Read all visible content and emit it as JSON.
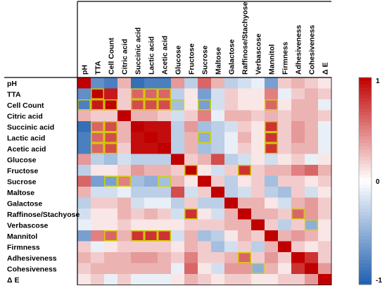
{
  "chart_data": {
    "type": "heatmap",
    "title": "",
    "xlabel": "",
    "ylabel": "",
    "variables": [
      "pH",
      "TTA",
      "Cell Count",
      "Citric acid",
      "Succinic acid",
      "Lactic acid",
      "Acetic acid",
      "Glucose",
      "Fructose",
      "Sucrose",
      "Maltose",
      "Galactose",
      "Raffinose/Stachyose",
      "Verbascose",
      "Mannitol",
      "Firmness",
      "Adhesiveness",
      "Cohesiveness",
      "Δ E"
    ],
    "values": [
      [
        1.0,
        -0.7,
        -0.8,
        0.3,
        -0.9,
        -0.8,
        -0.8,
        0.4,
        -0.3,
        0.6,
        0.3,
        -0.3,
        -0.2,
        -0.1,
        -0.6,
        0.2,
        0.3,
        0.2,
        0.1
      ],
      [
        -0.7,
        1.0,
        0.9,
        0.2,
        0.6,
        0.6,
        0.6,
        -0.3,
        0.1,
        -0.6,
        -0.2,
        0.2,
        0.1,
        0.1,
        0.5,
        -0.1,
        0.2,
        0.3,
        0.2
      ],
      [
        -0.8,
        0.9,
        1.0,
        0.2,
        0.7,
        0.7,
        0.7,
        -0.4,
        0.1,
        -0.6,
        -0.2,
        0.2,
        0.1,
        0.1,
        0.6,
        0.1,
        0.3,
        0.3,
        -0.1
      ],
      [
        0.3,
        0.2,
        0.2,
        1.0,
        0.3,
        0.3,
        0.2,
        -0.2,
        0.2,
        0.5,
        -0.1,
        0.3,
        0.3,
        0.2,
        0.3,
        0.2,
        0.3,
        0.3,
        0.2
      ],
      [
        -0.9,
        0.6,
        0.7,
        0.3,
        1.0,
        0.95,
        0.95,
        -0.3,
        0.4,
        -0.4,
        -0.3,
        -0.2,
        0.2,
        0.1,
        0.8,
        0.2,
        0.4,
        0.3,
        -0.1
      ],
      [
        -0.8,
        0.6,
        0.7,
        0.3,
        0.95,
        1.0,
        0.95,
        -0.3,
        0.3,
        -0.5,
        -0.3,
        -0.1,
        0.3,
        0.1,
        0.8,
        0.2,
        0.4,
        0.3,
        -0.1
      ],
      [
        -0.8,
        0.6,
        0.7,
        0.2,
        0.95,
        0.95,
        1.0,
        -0.3,
        0.3,
        -0.4,
        -0.3,
        -0.1,
        0.2,
        0.1,
        0.8,
        0.2,
        0.3,
        0.3,
        -0.1
      ],
      [
        0.4,
        -0.3,
        -0.4,
        -0.2,
        -0.3,
        -0.3,
        -0.3,
        1.0,
        0.2,
        0.3,
        0.7,
        -0.3,
        -0.2,
        0.1,
        -0.2,
        0.1,
        0.2,
        -0.1,
        0.1
      ],
      [
        -0.3,
        0.1,
        0.1,
        0.2,
        0.4,
        0.3,
        0.3,
        0.2,
        1.0,
        0.1,
        -0.2,
        0.2,
        0.8,
        0.2,
        0.3,
        0.3,
        0.5,
        0.6,
        0.3
      ],
      [
        0.6,
        -0.6,
        -0.6,
        0.5,
        -0.4,
        -0.5,
        -0.4,
        0.3,
        0.1,
        1.0,
        0.2,
        -0.3,
        0.1,
        0.2,
        -0.4,
        0.2,
        0.2,
        0.1,
        0.2
      ],
      [
        0.3,
        -0.2,
        -0.2,
        -0.1,
        -0.3,
        -0.3,
        -0.3,
        0.7,
        -0.2,
        0.2,
        1.0,
        -0.3,
        -0.2,
        0.2,
        -0.3,
        -0.4,
        0.2,
        -0.2,
        0.1
      ],
      [
        -0.3,
        0.2,
        0.2,
        0.3,
        -0.2,
        -0.1,
        -0.1,
        -0.3,
        0.2,
        -0.3,
        -0.3,
        1.0,
        0.3,
        0.3,
        0.1,
        -0.2,
        0.3,
        0.4,
        0.2
      ],
      [
        -0.2,
        0.1,
        0.1,
        0.3,
        0.2,
        0.3,
        0.2,
        -0.2,
        0.8,
        0.1,
        -0.2,
        0.3,
        1.0,
        0.3,
        0.3,
        0.2,
        0.6,
        0.4,
        0.2
      ],
      [
        -0.1,
        0.1,
        0.1,
        0.2,
        0.1,
        0.1,
        0.1,
        0.1,
        0.2,
        0.2,
        0.2,
        0.3,
        0.3,
        1.0,
        0.2,
        -0.3,
        0.2,
        -0.5,
        0.1
      ],
      [
        -0.6,
        0.5,
        0.6,
        0.3,
        0.8,
        0.8,
        0.8,
        -0.2,
        0.3,
        -0.4,
        -0.3,
        0.1,
        0.3,
        0.2,
        1.0,
        0.3,
        0.4,
        0.3,
        0.1
      ],
      [
        0.2,
        -0.1,
        0.1,
        0.2,
        0.2,
        0.2,
        0.2,
        0.1,
        0.3,
        0.2,
        -0.4,
        -0.2,
        0.2,
        -0.3,
        0.3,
        1.0,
        0.2,
        0.1,
        0.2
      ],
      [
        0.3,
        0.2,
        0.3,
        0.3,
        0.4,
        0.4,
        0.3,
        0.2,
        0.5,
        0.2,
        0.2,
        0.3,
        0.6,
        0.2,
        0.4,
        0.2,
        1.0,
        0.8,
        0.2
      ],
      [
        0.2,
        0.3,
        0.3,
        0.3,
        0.3,
        0.3,
        0.3,
        -0.1,
        0.6,
        0.1,
        -0.2,
        0.4,
        0.4,
        -0.5,
        0.3,
        0.1,
        0.8,
        1.0,
        0.4
      ],
      [
        0.1,
        0.2,
        -0.1,
        0.2,
        -0.1,
        -0.1,
        -0.1,
        0.1,
        0.3,
        0.2,
        0.1,
        0.2,
        0.2,
        0.1,
        0.1,
        0.2,
        0.2,
        0.4,
        1.0
      ]
    ],
    "highlighted": [
      [
        1,
        1
      ],
      [
        1,
        4
      ],
      [
        1,
        5
      ],
      [
        1,
        6
      ],
      [
        2,
        0
      ],
      [
        2,
        1
      ],
      [
        2,
        2
      ],
      [
        2,
        4
      ],
      [
        2,
        5
      ],
      [
        2,
        6
      ],
      [
        2,
        7
      ],
      [
        2,
        9
      ],
      [
        2,
        14
      ],
      [
        4,
        1
      ],
      [
        4,
        2
      ],
      [
        4,
        14
      ],
      [
        5,
        1
      ],
      [
        5,
        2
      ],
      [
        5,
        9
      ],
      [
        5,
        14
      ],
      [
        6,
        1
      ],
      [
        6,
        2
      ],
      [
        6,
        14
      ],
      [
        8,
        8
      ],
      [
        8,
        12
      ],
      [
        9,
        2
      ],
      [
        9,
        3
      ],
      [
        9,
        6
      ],
      [
        12,
        8
      ],
      [
        12,
        16
      ],
      [
        13,
        17
      ],
      [
        14,
        2
      ],
      [
        14,
        4
      ],
      [
        14,
        5
      ],
      [
        14,
        6
      ],
      [
        16,
        12
      ],
      [
        17,
        13
      ]
    ],
    "colorbar": {
      "min": -1,
      "max": 1,
      "ticks": [
        1,
        0,
        -1
      ]
    },
    "colors": {
      "negative": "#1f5fb0",
      "neutral": "#ffffff",
      "positive": "#c00000",
      "highlight": "#d4d400"
    }
  }
}
